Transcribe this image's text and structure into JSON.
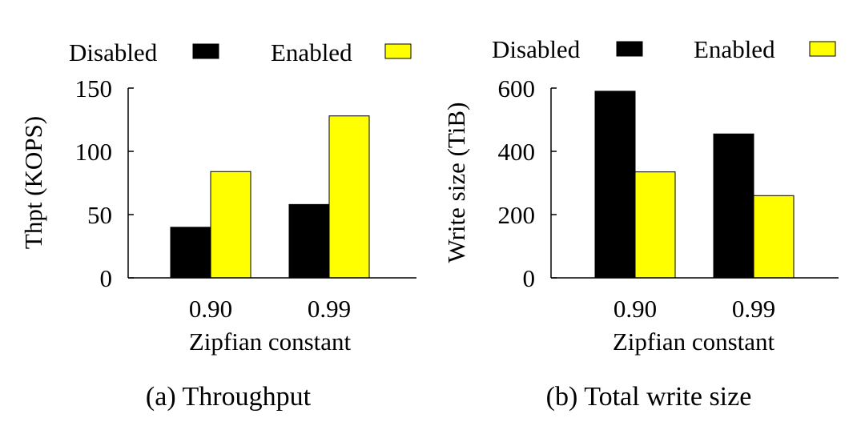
{
  "colors": {
    "disabled": "#000000",
    "enabled": "#ffff00",
    "axis": "#000000"
  },
  "chart_data": [
    {
      "type": "bar",
      "categories": [
        "0.90",
        "0.99"
      ],
      "series": [
        {
          "name": "Disabled",
          "values": [
            40,
            58
          ]
        },
        {
          "name": "Enabled",
          "values": [
            84,
            128
          ]
        }
      ],
      "ylim": [
        0,
        150
      ],
      "yticks": [
        "0",
        "50",
        "100",
        "150"
      ],
      "ytick_values": [
        0,
        50,
        100,
        150
      ],
      "xlabel": "Zipfian constant",
      "ylabel": "Thpt (KOPS)",
      "caption": "(a) Throughput",
      "legend_position": "top"
    },
    {
      "type": "bar",
      "categories": [
        "0.90",
        "0.99"
      ],
      "series": [
        {
          "name": "Disabled",
          "values": [
            590,
            455
          ]
        },
        {
          "name": "Enabled",
          "values": [
            335,
            260
          ]
        }
      ],
      "ylim": [
        0,
        600
      ],
      "yticks": [
        "0",
        "200",
        "400",
        "600"
      ],
      "ytick_values": [
        0,
        200,
        400,
        600
      ],
      "xlabel": "Zipfian constant",
      "ylabel": "Write size (TiB)",
      "caption": "(b) Total write size",
      "legend_position": "top"
    }
  ]
}
